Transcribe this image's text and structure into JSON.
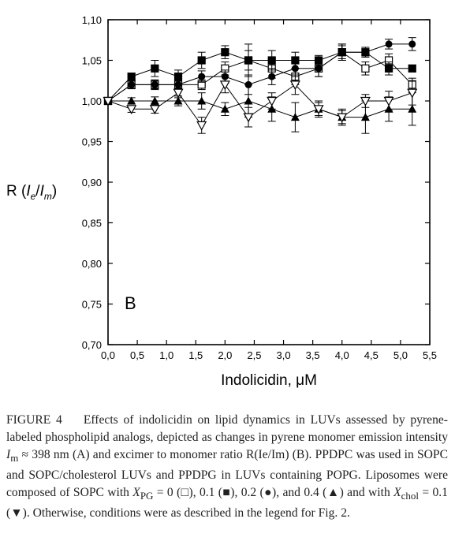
{
  "chart_data": {
    "type": "scatter",
    "panel_label": "B",
    "xlabel": "Indolicidin, μM",
    "ylabel": "R (Ie/Im)",
    "xlim": [
      0.0,
      5.5
    ],
    "ylim": [
      0.7,
      1.1
    ],
    "x_ticks": [
      "0,0",
      "0,5",
      "1,0",
      "1,5",
      "2,0",
      "2,5",
      "3,0",
      "3,5",
      "4,0",
      "4,5",
      "5,0",
      "5,5"
    ],
    "y_ticks": [
      "0,70",
      "0,75",
      "0,80",
      "0,85",
      "0,90",
      "0,95",
      "1,00",
      "1,05",
      "1,10"
    ],
    "x_tick_values": [
      0,
      0.5,
      1,
      1.5,
      2,
      2.5,
      3,
      3.5,
      4,
      4.5,
      5,
      5.5
    ],
    "y_tick_values": [
      0.7,
      0.75,
      0.8,
      0.85,
      0.9,
      0.95,
      1.0,
      1.05,
      1.1
    ],
    "grid": false,
    "series": [
      {
        "marker": "open-square",
        "x": [
          0,
          0.4,
          0.8,
          1.2,
          1.6,
          2.0,
          2.4,
          2.8,
          3.2,
          3.6,
          4.0,
          4.4,
          4.8,
          5.2
        ],
        "y": [
          1.0,
          1.02,
          1.02,
          1.02,
          1.02,
          1.04,
          1.05,
          1.04,
          1.03,
          1.04,
          1.06,
          1.04,
          1.05,
          1.02
        ],
        "err": [
          0,
          0.005,
          0.005,
          0.005,
          0.006,
          0.008,
          0.012,
          0.012,
          0.01,
          0.01,
          0.01,
          0.008,
          0.008,
          0.008
        ]
      },
      {
        "marker": "filled-square",
        "x": [
          0,
          0.4,
          0.8,
          1.2,
          1.6,
          2.0,
          2.4,
          2.8,
          3.2,
          3.6,
          4.0,
          4.4,
          4.8,
          5.2
        ],
        "y": [
          1.0,
          1.03,
          1.04,
          1.03,
          1.05,
          1.06,
          1.05,
          1.05,
          1.05,
          1.05,
          1.06,
          1.06,
          1.04,
          1.04
        ],
        "err": [
          0,
          0.004,
          0.01,
          0.008,
          0.01,
          0.008,
          0.02,
          0.012,
          0.01,
          0.006,
          0.008,
          0.006,
          0.008,
          0.004
        ]
      },
      {
        "marker": "filled-circle",
        "x": [
          0,
          0.4,
          0.8,
          1.2,
          1.6,
          2.0,
          2.4,
          2.8,
          3.2,
          3.6,
          4.0,
          4.4,
          4.8,
          5.2
        ],
        "y": [
          1.0,
          1.02,
          1.02,
          1.02,
          1.03,
          1.03,
          1.02,
          1.03,
          1.04,
          1.04,
          1.06,
          1.06,
          1.07,
          1.07
        ],
        "err": [
          0,
          0.005,
          0.006,
          0.006,
          0.007,
          0.008,
          0.012,
          0.01,
          0.01,
          0.01,
          0.01,
          0.006,
          0.006,
          0.008
        ]
      },
      {
        "marker": "filled-triangle-up",
        "x": [
          0,
          0.4,
          0.8,
          1.2,
          1.6,
          2.0,
          2.4,
          2.8,
          3.2,
          3.6,
          4.0,
          4.4,
          4.8,
          5.2
        ],
        "y": [
          1.0,
          1.0,
          1.0,
          1.0,
          1.0,
          0.99,
          1.0,
          0.99,
          0.98,
          0.99,
          0.98,
          0.98,
          0.99,
          0.99
        ],
        "err": [
          0,
          0.004,
          0.005,
          0.006,
          0.01,
          0.008,
          0.02,
          0.015,
          0.018,
          0.008,
          0.01,
          0.02,
          0.015,
          0.02
        ]
      },
      {
        "marker": "open-triangle-down",
        "x": [
          0,
          0.4,
          0.8,
          1.2,
          1.6,
          2.0,
          2.4,
          2.8,
          3.2,
          3.6,
          4.0,
          4.4,
          4.8,
          5.2
        ],
        "y": [
          1.0,
          0.99,
          0.99,
          1.01,
          0.97,
          1.02,
          0.98,
          1.0,
          1.02,
          0.99,
          0.98,
          1.0,
          1.0,
          1.01
        ],
        "err": [
          0,
          0.004,
          0.005,
          0.006,
          0.01,
          0.01,
          0.012,
          0.01,
          0.012,
          0.01,
          0.008,
          0.008,
          0.012,
          0.015
        ]
      }
    ]
  },
  "caption": {
    "figure_label": "FIGURE 4",
    "p1": "Effects of indolicidin on lipid dynamics in LUVs assessed by pyrene-labeled phospholipid analogs, depicted as changes in pyrene monomer emission intensity ",
    "im": "I",
    "im_sub": "m",
    "p2": " ≈ 398 nm (A) and excimer to monomer ratio R(Ie/Im) (B). PPDPC was used in SOPC and SOPC/cholesterol LUVs and PPDPG in LUVs containing POPG. Liposomes were composed of SOPC with ",
    "xpg": "X",
    "xpg_sub": "PG",
    "p3": " = 0 (□), 0.1 (■), 0.2 (●), and 0.4 (▲) and with ",
    "xchol": "X",
    "xchol_sub": "chol",
    "p4": " = 0.1 (▼). Otherwise, conditions were as described in the legend for Fig. 2."
  }
}
